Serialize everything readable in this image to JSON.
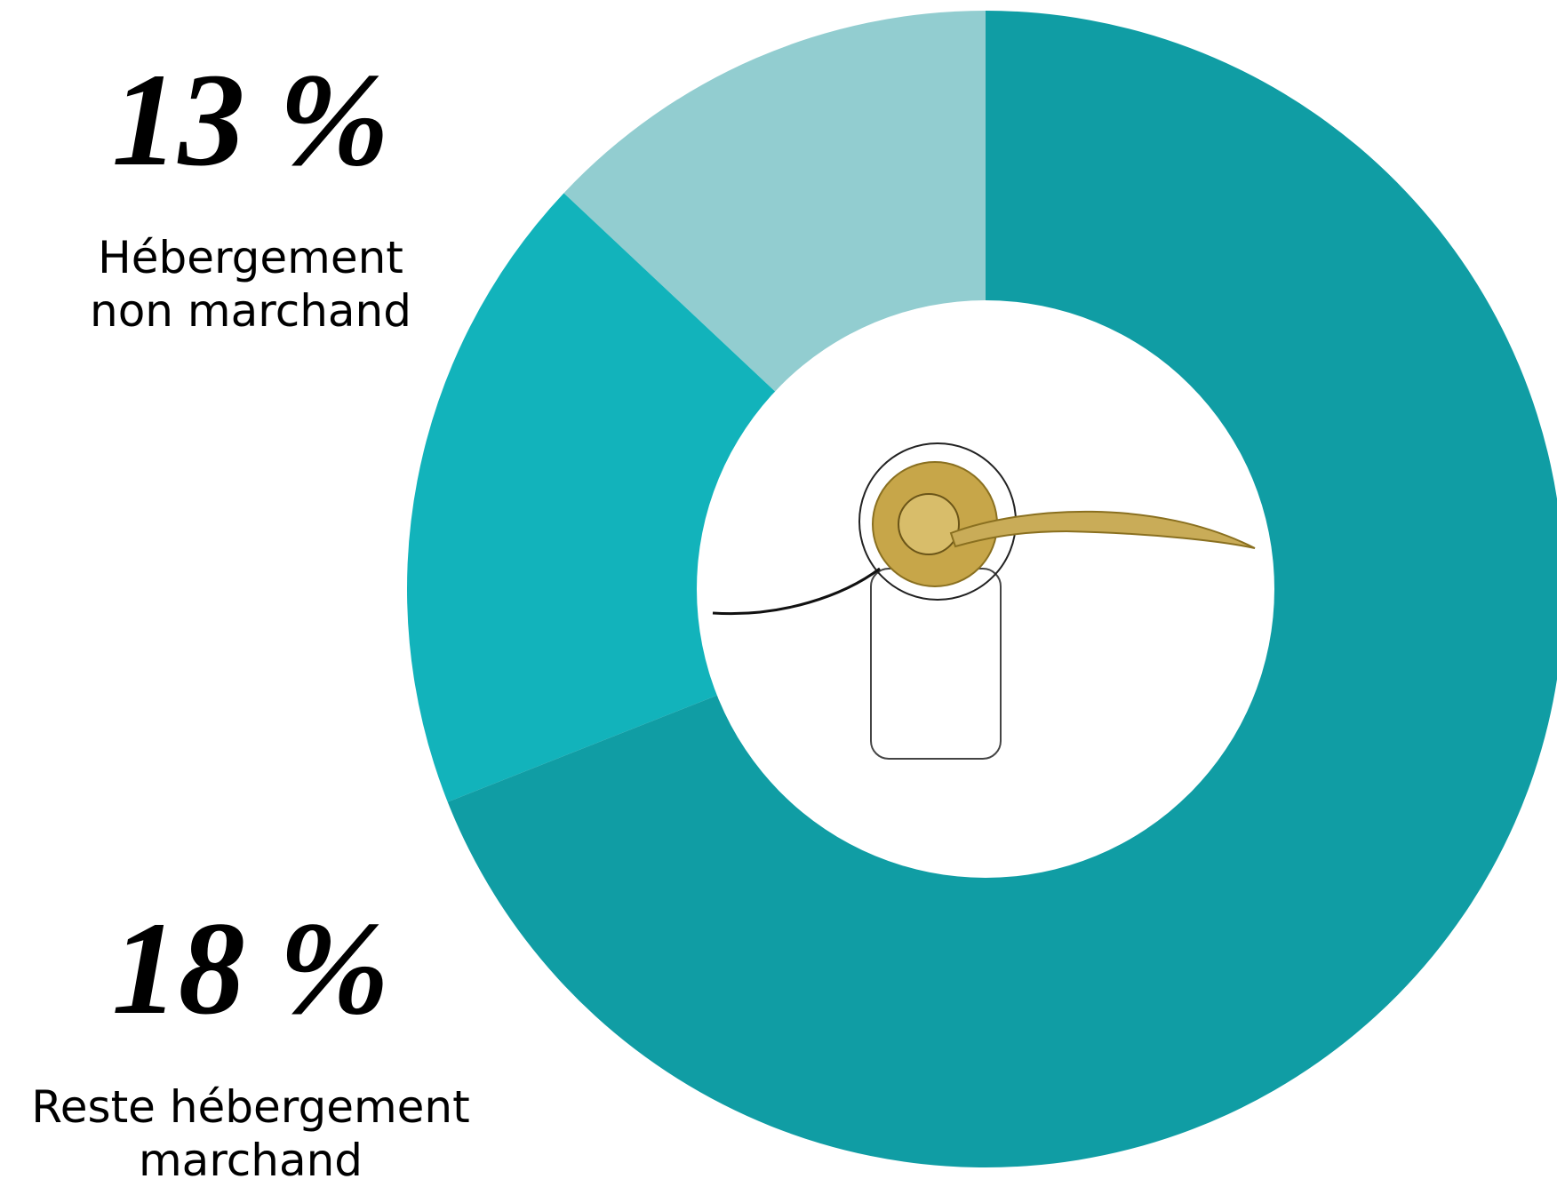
{
  "chart_data": {
    "type": "pie",
    "categories": [
      "Hébergement\nnon marchand",
      "Reste hébergement\nmarchand",
      null
    ],
    "values": [
      13,
      18,
      69
    ],
    "value_labels": [
      "13 %",
      "18 %",
      null
    ],
    "colors": [
      "#92cdd0",
      "#12b3bb",
      "#109da4"
    ]
  }
}
